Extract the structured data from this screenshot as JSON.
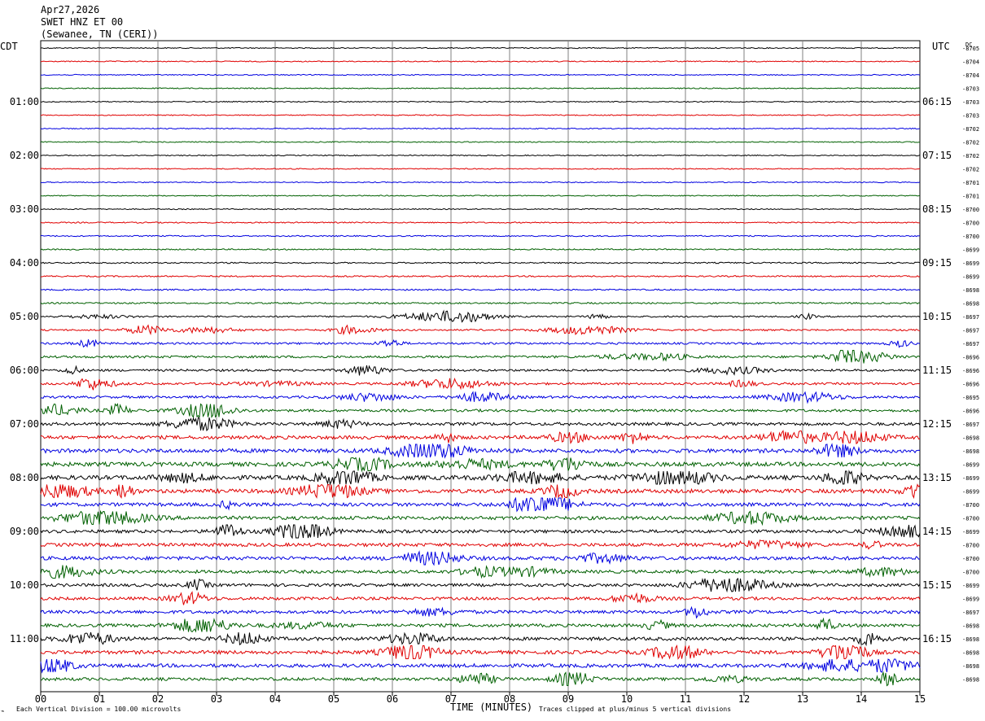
{
  "header": {
    "date": "Apr27,2026",
    "station": "SWET HNZ ET 00",
    "location": "(Sewanee, TN (CERI))"
  },
  "left_tz": "CDT",
  "right_tz": "UTC",
  "dc_label": "DC",
  "chart_data": {
    "type": "line",
    "title": "SWET HNZ ET 00",
    "xlabel": "TIME (MINUTES)",
    "x_ticks": [
      "00",
      "01",
      "02",
      "03",
      "04",
      "05",
      "06",
      "07",
      "08",
      "09",
      "10",
      "11",
      "12",
      "13",
      "14",
      "15"
    ],
    "xlim": [
      0,
      15
    ],
    "rows": 48,
    "minutes_per_row": 15,
    "trace_colors": [
      "#000000",
      "#e00000",
      "#0000e0",
      "#006000"
    ],
    "left_labels": [
      "01:00",
      "02:00",
      "03:00",
      "04:00",
      "05:00",
      "06:00",
      "07:00",
      "08:00",
      "09:00",
      "10:00",
      "11:00"
    ],
    "right_labels": [
      "06:15",
      "07:15",
      "08:15",
      "09:15",
      "10:15",
      "11:15",
      "12:15",
      "13:15",
      "14:15",
      "15:15",
      "16:15"
    ],
    "dc_offsets": [
      "-8705",
      "-8704",
      "-8704",
      "-8703",
      "-8703",
      "-8703",
      "-8702",
      "-8702",
      "-8702",
      "-8702",
      "-8701",
      "-8701",
      "-8700",
      "-8700",
      "-8700",
      "-8699",
      "-8699",
      "-8699",
      "-8698",
      "-8698",
      "-8697",
      "-8697",
      "-8697",
      "-8696",
      "-8696",
      "-8696",
      "-8695",
      "-8696",
      "-8697",
      "-8698",
      "-8698",
      "-8699",
      "-8699",
      "-8699",
      "-8700",
      "-8700",
      "-8699",
      "-8700",
      "-8700",
      "-8700",
      "-8699",
      "-8699",
      "-8697",
      "-8698",
      "-8698",
      "-8698",
      "-8698",
      "-8698"
    ],
    "noise_level": [
      1,
      1,
      1,
      1,
      1,
      1,
      1,
      1,
      1,
      1,
      1,
      1,
      1,
      1.2,
      1.2,
      1.2,
      1.3,
      1.4,
      1.4,
      1.5,
      1.6,
      1.7,
      2,
      2.3,
      2.2,
      2.2,
      2.4,
      2.6,
      3,
      3.5,
      4,
      4.2,
      4.4,
      4,
      3.6,
      3.6,
      3.2,
      3.4,
      3.6,
      3.2,
      3,
      3,
      3.2,
      3.2,
      3.4,
      3.6,
      3.6,
      3
    ],
    "vertical_division": "Each Vertical Division =  100.00 microvolts",
    "clip_note": "Traces clipped at plus/minus 5 vertical divisions"
  }
}
